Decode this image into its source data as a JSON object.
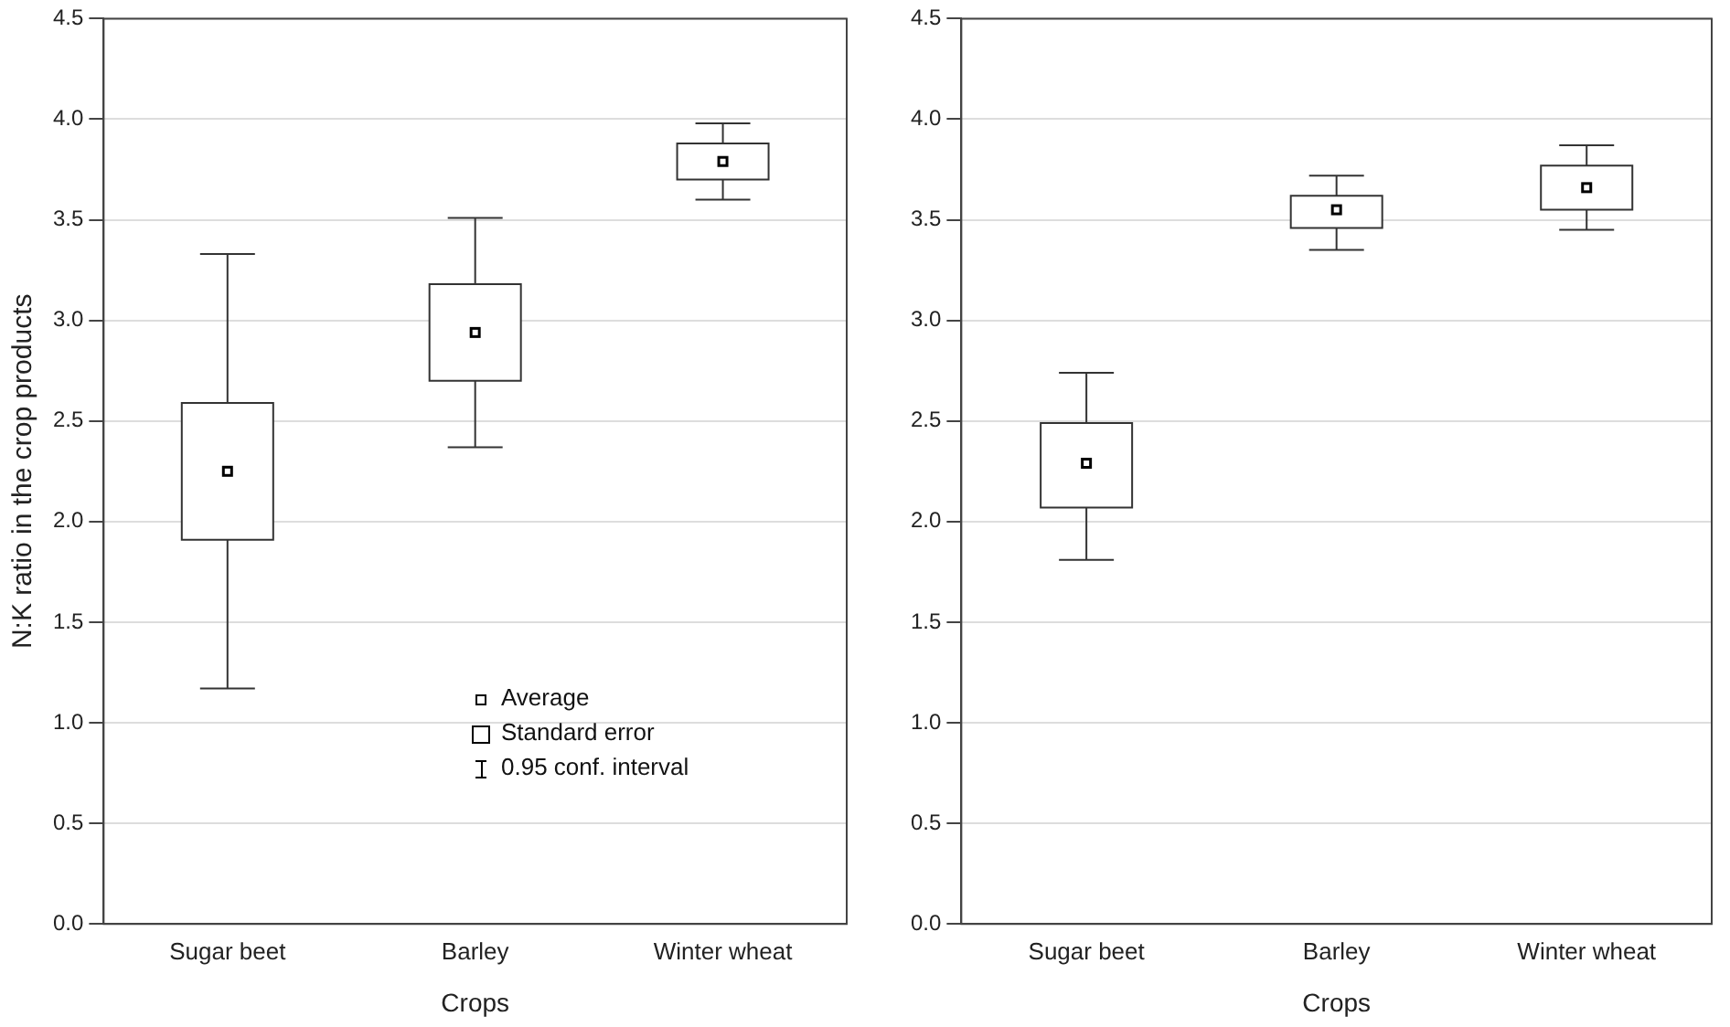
{
  "chart_data": [
    {
      "type": "box",
      "ylabel": "N:K ratio in the crop products",
      "xlabel": "Crops",
      "categories": [
        "Sugar beet",
        "Barley",
        "Winter wheat"
      ],
      "boxes": [
        {
          "low": 1.17,
          "q1": 1.91,
          "median": 2.25,
          "q3": 2.59,
          "high": 3.33
        },
        {
          "low": 2.37,
          "q1": 2.7,
          "median": 2.94,
          "q3": 3.18,
          "high": 3.51
        },
        {
          "low": 3.6,
          "q1": 3.7,
          "median": 3.79,
          "q3": 3.88,
          "high": 3.98
        }
      ],
      "ylim": [
        0,
        4.5
      ],
      "yticks": [
        {
          "value": 0,
          "label": "0.0"
        },
        0.5,
        {
          "value": 1,
          "label": "1.0"
        },
        1.5,
        {
          "value": 2,
          "label": "2.0"
        },
        2.5,
        {
          "value": 3,
          "label": "3.0"
        },
        3.5,
        {
          "value": 4,
          "label": "4.0"
        },
        4.5
      ],
      "grid": "y",
      "annotations": [
        "Average",
        "Standard error",
        "0.95 conf. interval"
      ]
    },
    {
      "type": "box",
      "xlabel": "Crops",
      "categories": [
        "Sugar beet",
        "Barley",
        "Winter wheat"
      ],
      "boxes": [
        {
          "low": 1.81,
          "q1": 2.07,
          "median": 2.29,
          "q3": 2.49,
          "high": 2.74
        },
        {
          "low": 3.35,
          "q1": 3.46,
          "median": 3.55,
          "q3": 3.62,
          "high": 3.72
        },
        {
          "low": 3.45,
          "q1": 3.55,
          "median": 3.66,
          "q3": 3.77,
          "high": 3.87
        }
      ],
      "ylim": [
        0,
        4.5
      ],
      "yticks": [
        {
          "value": 0,
          "label": "0.0"
        },
        0.5,
        {
          "value": 1,
          "label": "1.0"
        },
        1.5,
        {
          "value": 2,
          "label": "2.0"
        },
        2.5,
        {
          "value": 3,
          "label": "3.0"
        },
        3.5,
        {
          "value": 4,
          "label": "4.0"
        },
        4.5
      ],
      "grid": "y"
    }
  ]
}
